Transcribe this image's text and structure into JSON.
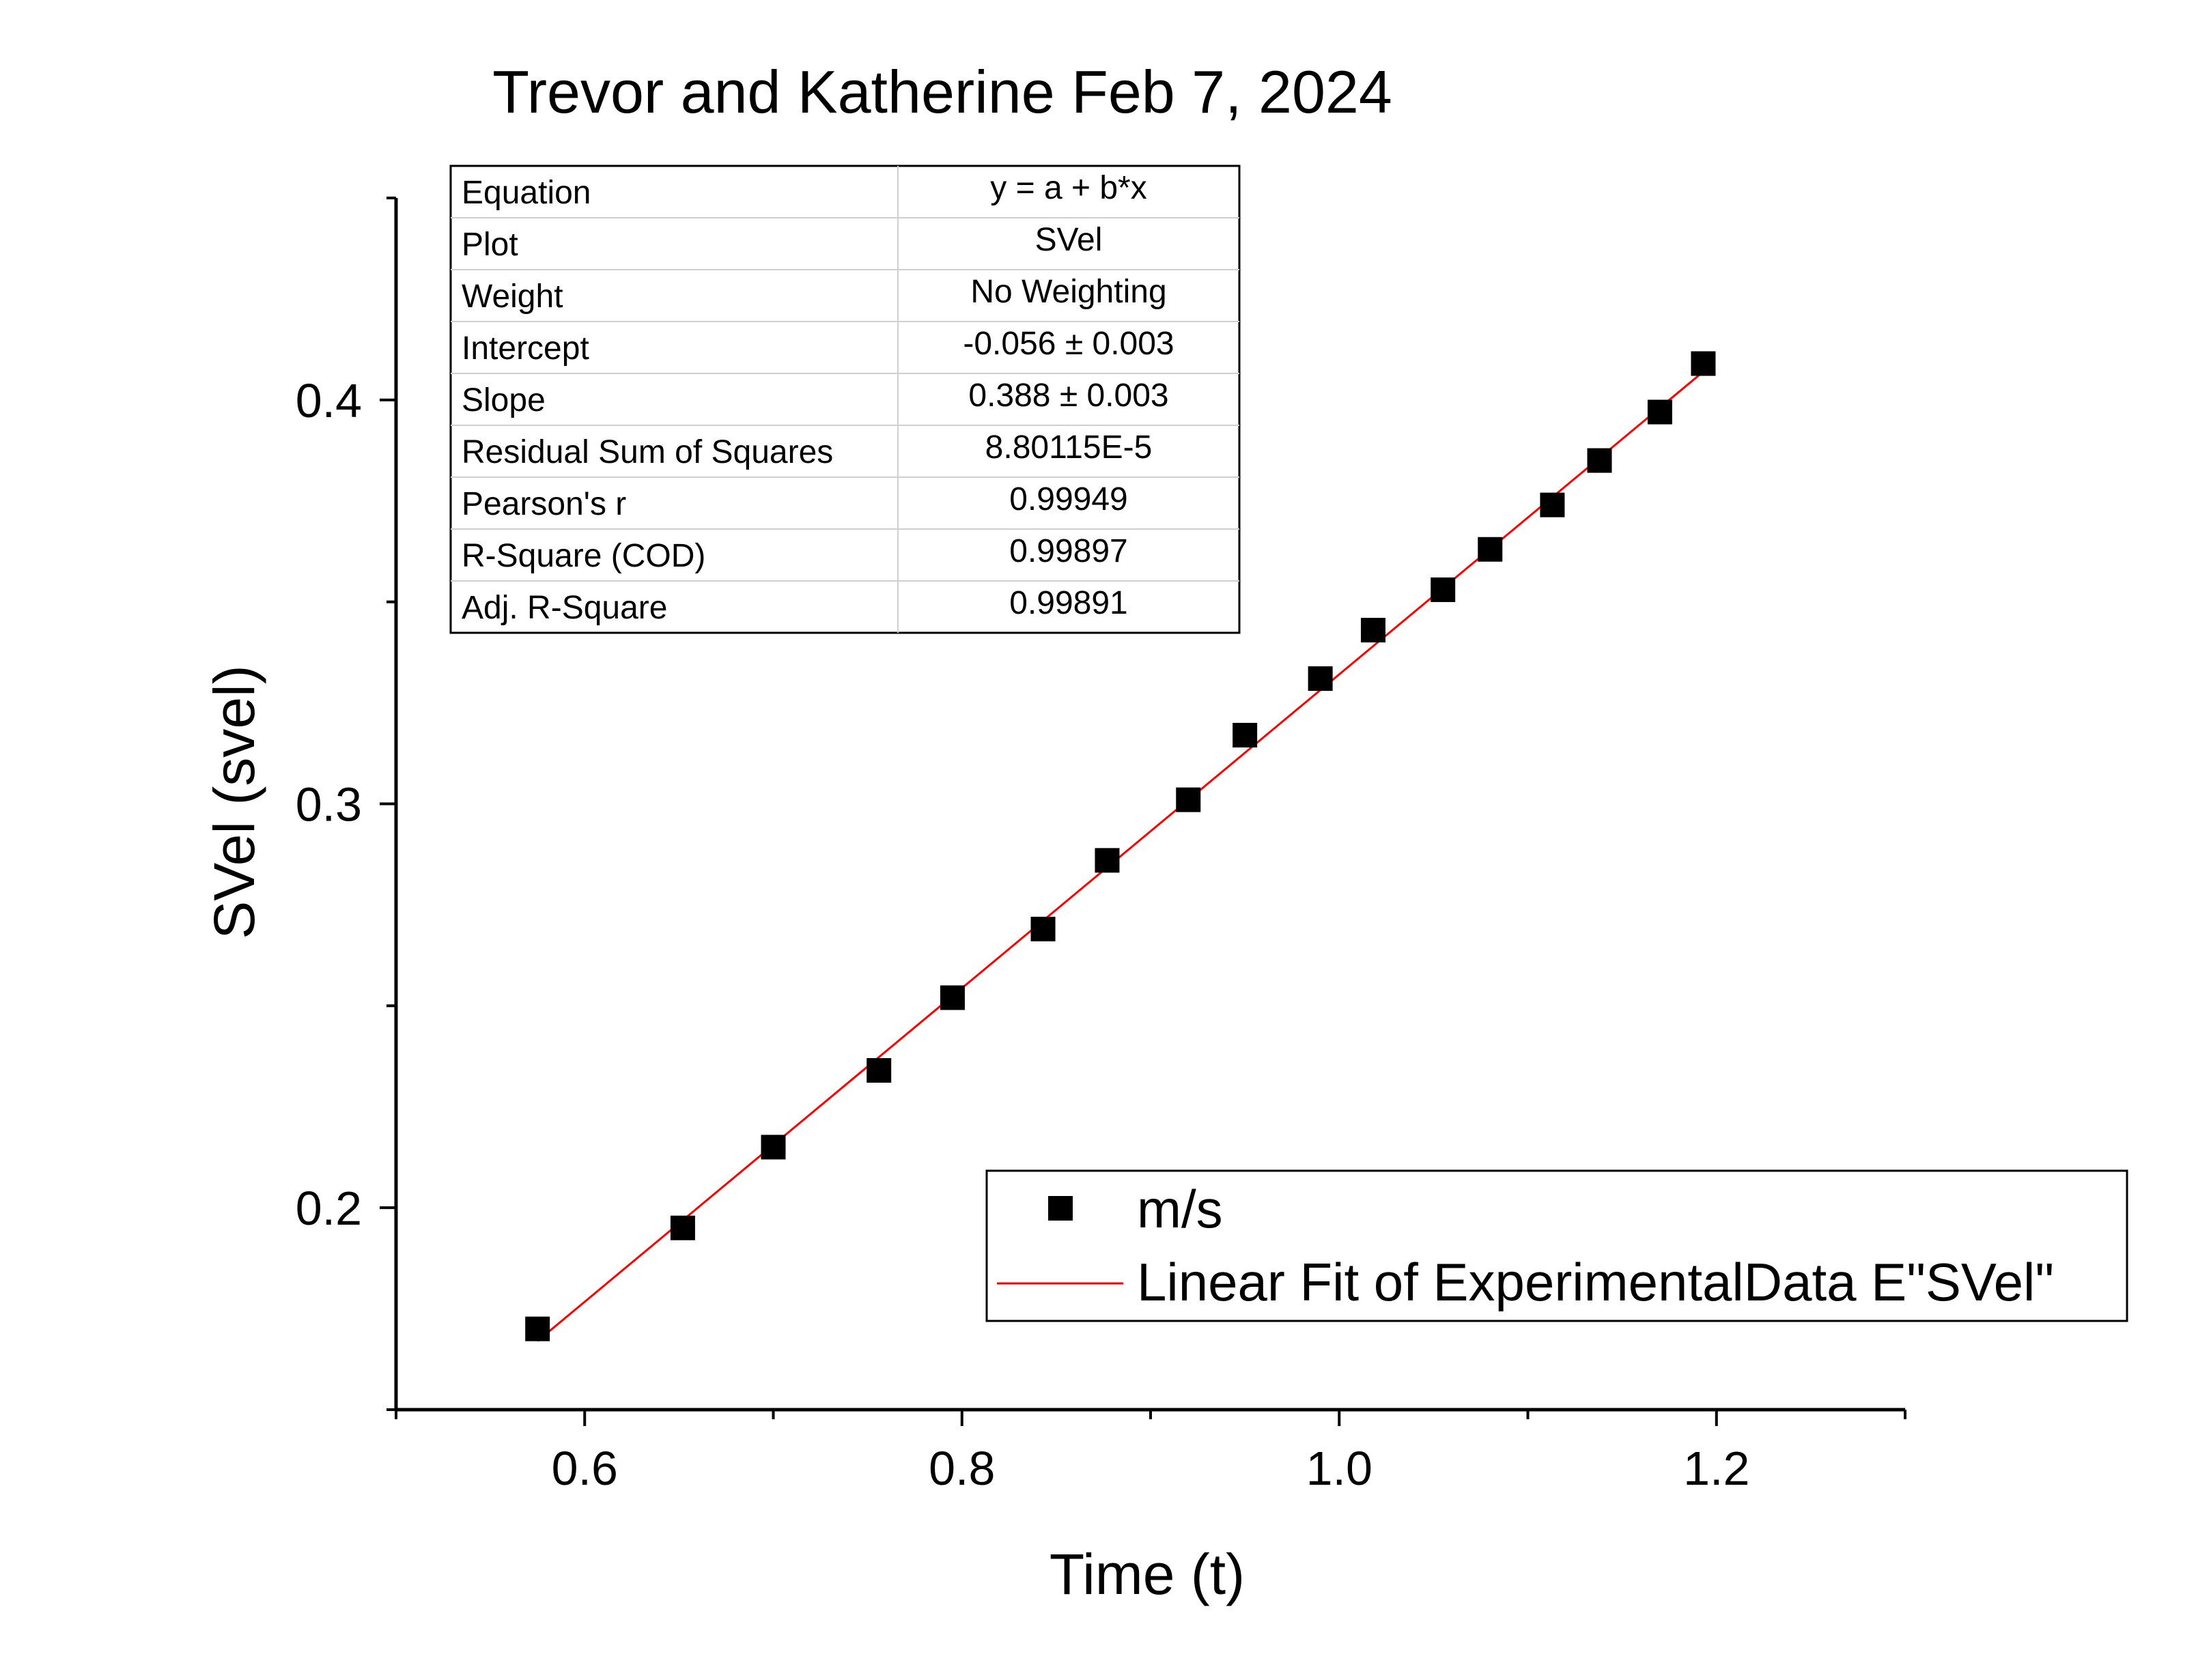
{
  "chart_data": {
    "type": "scatter",
    "title": "Trevor and Katherine Feb 7, 2024",
    "xlabel": "Time (t)",
    "ylabel": "SVel (svel)",
    "xlim": [
      0.5,
      1.3
    ],
    "ylim": [
      0.15,
      0.45
    ],
    "x_ticks": [
      {
        "value": 0.6,
        "label": "0.6"
      },
      {
        "value": 0.8,
        "label": "0.8"
      },
      {
        "value": 1.0,
        "label": "1.0"
      },
      {
        "value": 1.2,
        "label": "1.2"
      }
    ],
    "x_minor_ticks": [
      0.5,
      0.7,
      0.9,
      1.1,
      1.3
    ],
    "y_ticks": [
      {
        "value": 0.2,
        "label": "0.2"
      },
      {
        "value": 0.3,
        "label": "0.3"
      },
      {
        "value": 0.4,
        "label": "0.4"
      }
    ],
    "y_minor_ticks": [
      0.15,
      0.25,
      0.35,
      0.45
    ],
    "grid": false,
    "legend_position": "bottom-right",
    "series": [
      {
        "name": "m/s",
        "kind": "scatter",
        "marker": "square",
        "color": "#000000",
        "x": [
          0.575,
          0.652,
          0.7,
          0.756,
          0.795,
          0.843,
          0.877,
          0.92,
          0.95,
          0.99,
          1.018,
          1.055,
          1.08,
          1.113,
          1.138,
          1.17,
          1.193
        ],
        "y": [
          0.17,
          0.195,
          0.215,
          0.234,
          0.252,
          0.269,
          0.286,
          0.301,
          0.317,
          0.331,
          0.343,
          0.353,
          0.363,
          0.374,
          0.385,
          0.397,
          0.409
        ]
      },
      {
        "name": "Linear Fit of ExperimentalData E\"SVel\"",
        "kind": "line",
        "color": "#ff0000",
        "x": [
          0.575,
          1.193
        ],
        "y": [
          0.167,
          0.407
        ]
      }
    ],
    "fit_table": {
      "rows": [
        {
          "label": "Equation",
          "value": "y = a + b*x"
        },
        {
          "label": "Plot",
          "value": "SVel"
        },
        {
          "label": "Weight",
          "value": "No Weighting"
        },
        {
          "label": "Intercept",
          "value": "-0.056 ± 0.003"
        },
        {
          "label": "Slope",
          "value": "0.388 ± 0.003"
        },
        {
          "label": "Residual Sum of Squares",
          "value": "8.80115E-5"
        },
        {
          "label": "Pearson's r",
          "value": "0.99949"
        },
        {
          "label": "R-Square (COD)",
          "value": "0.99897"
        },
        {
          "label": "Adj. R-Square",
          "value": "0.99891"
        }
      ]
    }
  }
}
